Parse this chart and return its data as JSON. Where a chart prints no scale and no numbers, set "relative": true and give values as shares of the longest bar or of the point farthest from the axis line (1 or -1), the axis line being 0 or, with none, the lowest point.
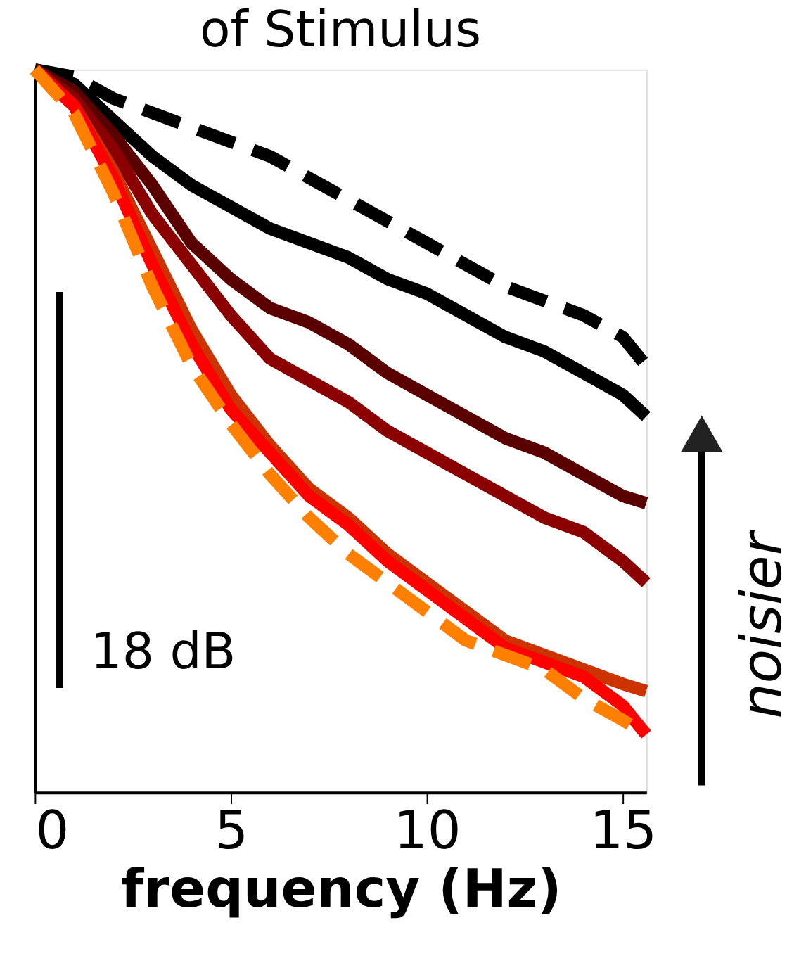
{
  "chart_data": {
    "type": "line",
    "title": "of Stimulus",
    "xlabel": "frequency (Hz)",
    "relative": true,
    "x": [
      0,
      1,
      2,
      3,
      4,
      5,
      6,
      7,
      8,
      9,
      10,
      11,
      12,
      13,
      14,
      15,
      15.6
    ],
    "xlim": [
      0,
      15.6
    ],
    "xticks": [
      0,
      5,
      10,
      15
    ],
    "grid": false,
    "legend": false,
    "marker": "none",
    "tick_labels": "x",
    "series": [
      {
        "color": "#000000",
        "line_style": "dashed",
        "values": [
          1.0,
          0.99,
          0.96,
          0.94,
          0.92,
          0.9,
          0.88,
          0.85,
          0.82,
          0.79,
          0.76,
          0.73,
          0.7,
          0.68,
          0.66,
          0.63,
          0.59
        ]
      },
      {
        "color": "#000000",
        "line_style": "solid",
        "values": [
          1.0,
          0.98,
          0.93,
          0.88,
          0.84,
          0.81,
          0.78,
          0.76,
          0.74,
          0.71,
          0.69,
          0.66,
          0.63,
          0.61,
          0.58,
          0.55,
          0.52
        ]
      },
      {
        "color": "#5a0000",
        "line_style": "solid",
        "values": [
          1.0,
          0.97,
          0.91,
          0.84,
          0.76,
          0.71,
          0.67,
          0.65,
          0.62,
          0.58,
          0.55,
          0.52,
          0.49,
          0.47,
          0.44,
          0.41,
          0.4
        ]
      },
      {
        "color": "#8b0000",
        "line_style": "solid",
        "values": [
          1.0,
          0.96,
          0.89,
          0.8,
          0.73,
          0.66,
          0.6,
          0.57,
          0.54,
          0.5,
          0.47,
          0.44,
          0.41,
          0.38,
          0.36,
          0.32,
          0.29
        ]
      },
      {
        "color": "#cc3300",
        "line_style": "solid",
        "values": [
          1.0,
          0.95,
          0.86,
          0.75,
          0.64,
          0.55,
          0.48,
          0.42,
          0.38,
          0.33,
          0.29,
          0.25,
          0.21,
          0.19,
          0.17,
          0.15,
          0.14
        ]
      },
      {
        "color": "#ff0000",
        "line_style": "solid",
        "values": [
          1.0,
          0.95,
          0.85,
          0.73,
          0.62,
          0.53,
          0.47,
          0.41,
          0.37,
          0.32,
          0.28,
          0.24,
          0.2,
          0.18,
          0.16,
          0.12,
          0.08
        ]
      },
      {
        "color": "#ff8000",
        "line_style": "dashed",
        "values": [
          1.0,
          0.94,
          0.83,
          0.7,
          0.59,
          0.51,
          0.44,
          0.38,
          0.33,
          0.29,
          0.25,
          0.21,
          0.19,
          0.17,
          0.13,
          0.1,
          0.08
        ]
      }
    ],
    "annotations": [
      "18 dB",
      "noisier"
    ]
  }
}
